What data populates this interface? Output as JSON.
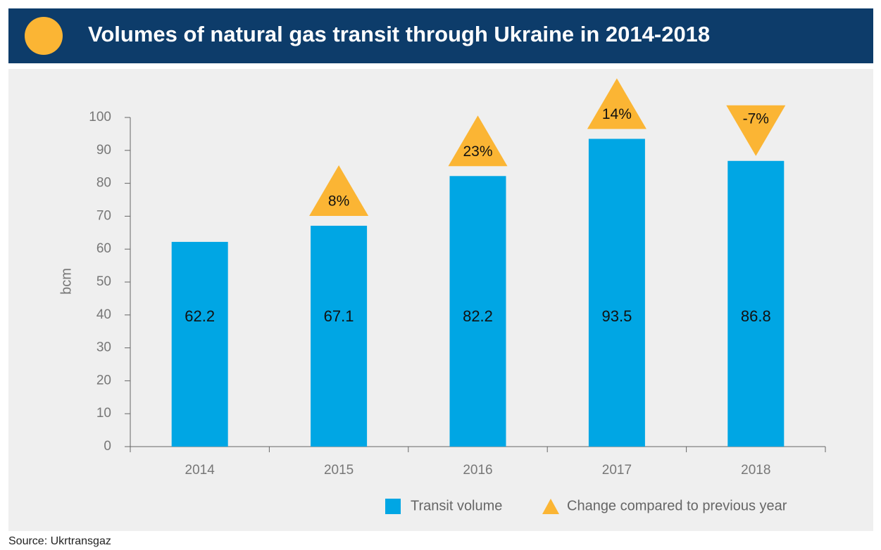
{
  "chart_data": {
    "type": "bar",
    "title": "Volumes of natural gas transit through Ukraine in 2014-2018",
    "ylabel": "bcm",
    "source": "Source: Ukrtransgaz",
    "categories": [
      "2014",
      "2015",
      "2016",
      "2017",
      "2018"
    ],
    "series": [
      {
        "name": "Transit volume",
        "color": "#00a6e4",
        "values": [
          62.2,
          67.1,
          82.2,
          93.5,
          86.8
        ]
      },
      {
        "name": "Change compared to previous year",
        "color": "#fbb534",
        "values": [
          null,
          8,
          23,
          14,
          -7
        ],
        "value_labels": [
          null,
          "8%",
          "23%",
          "14%",
          "-7%"
        ]
      }
    ],
    "ylim": [
      0,
      100
    ],
    "yticks": [
      0,
      10,
      20,
      30,
      40,
      50,
      60,
      70,
      80,
      90,
      100
    ],
    "grid": false
  }
}
